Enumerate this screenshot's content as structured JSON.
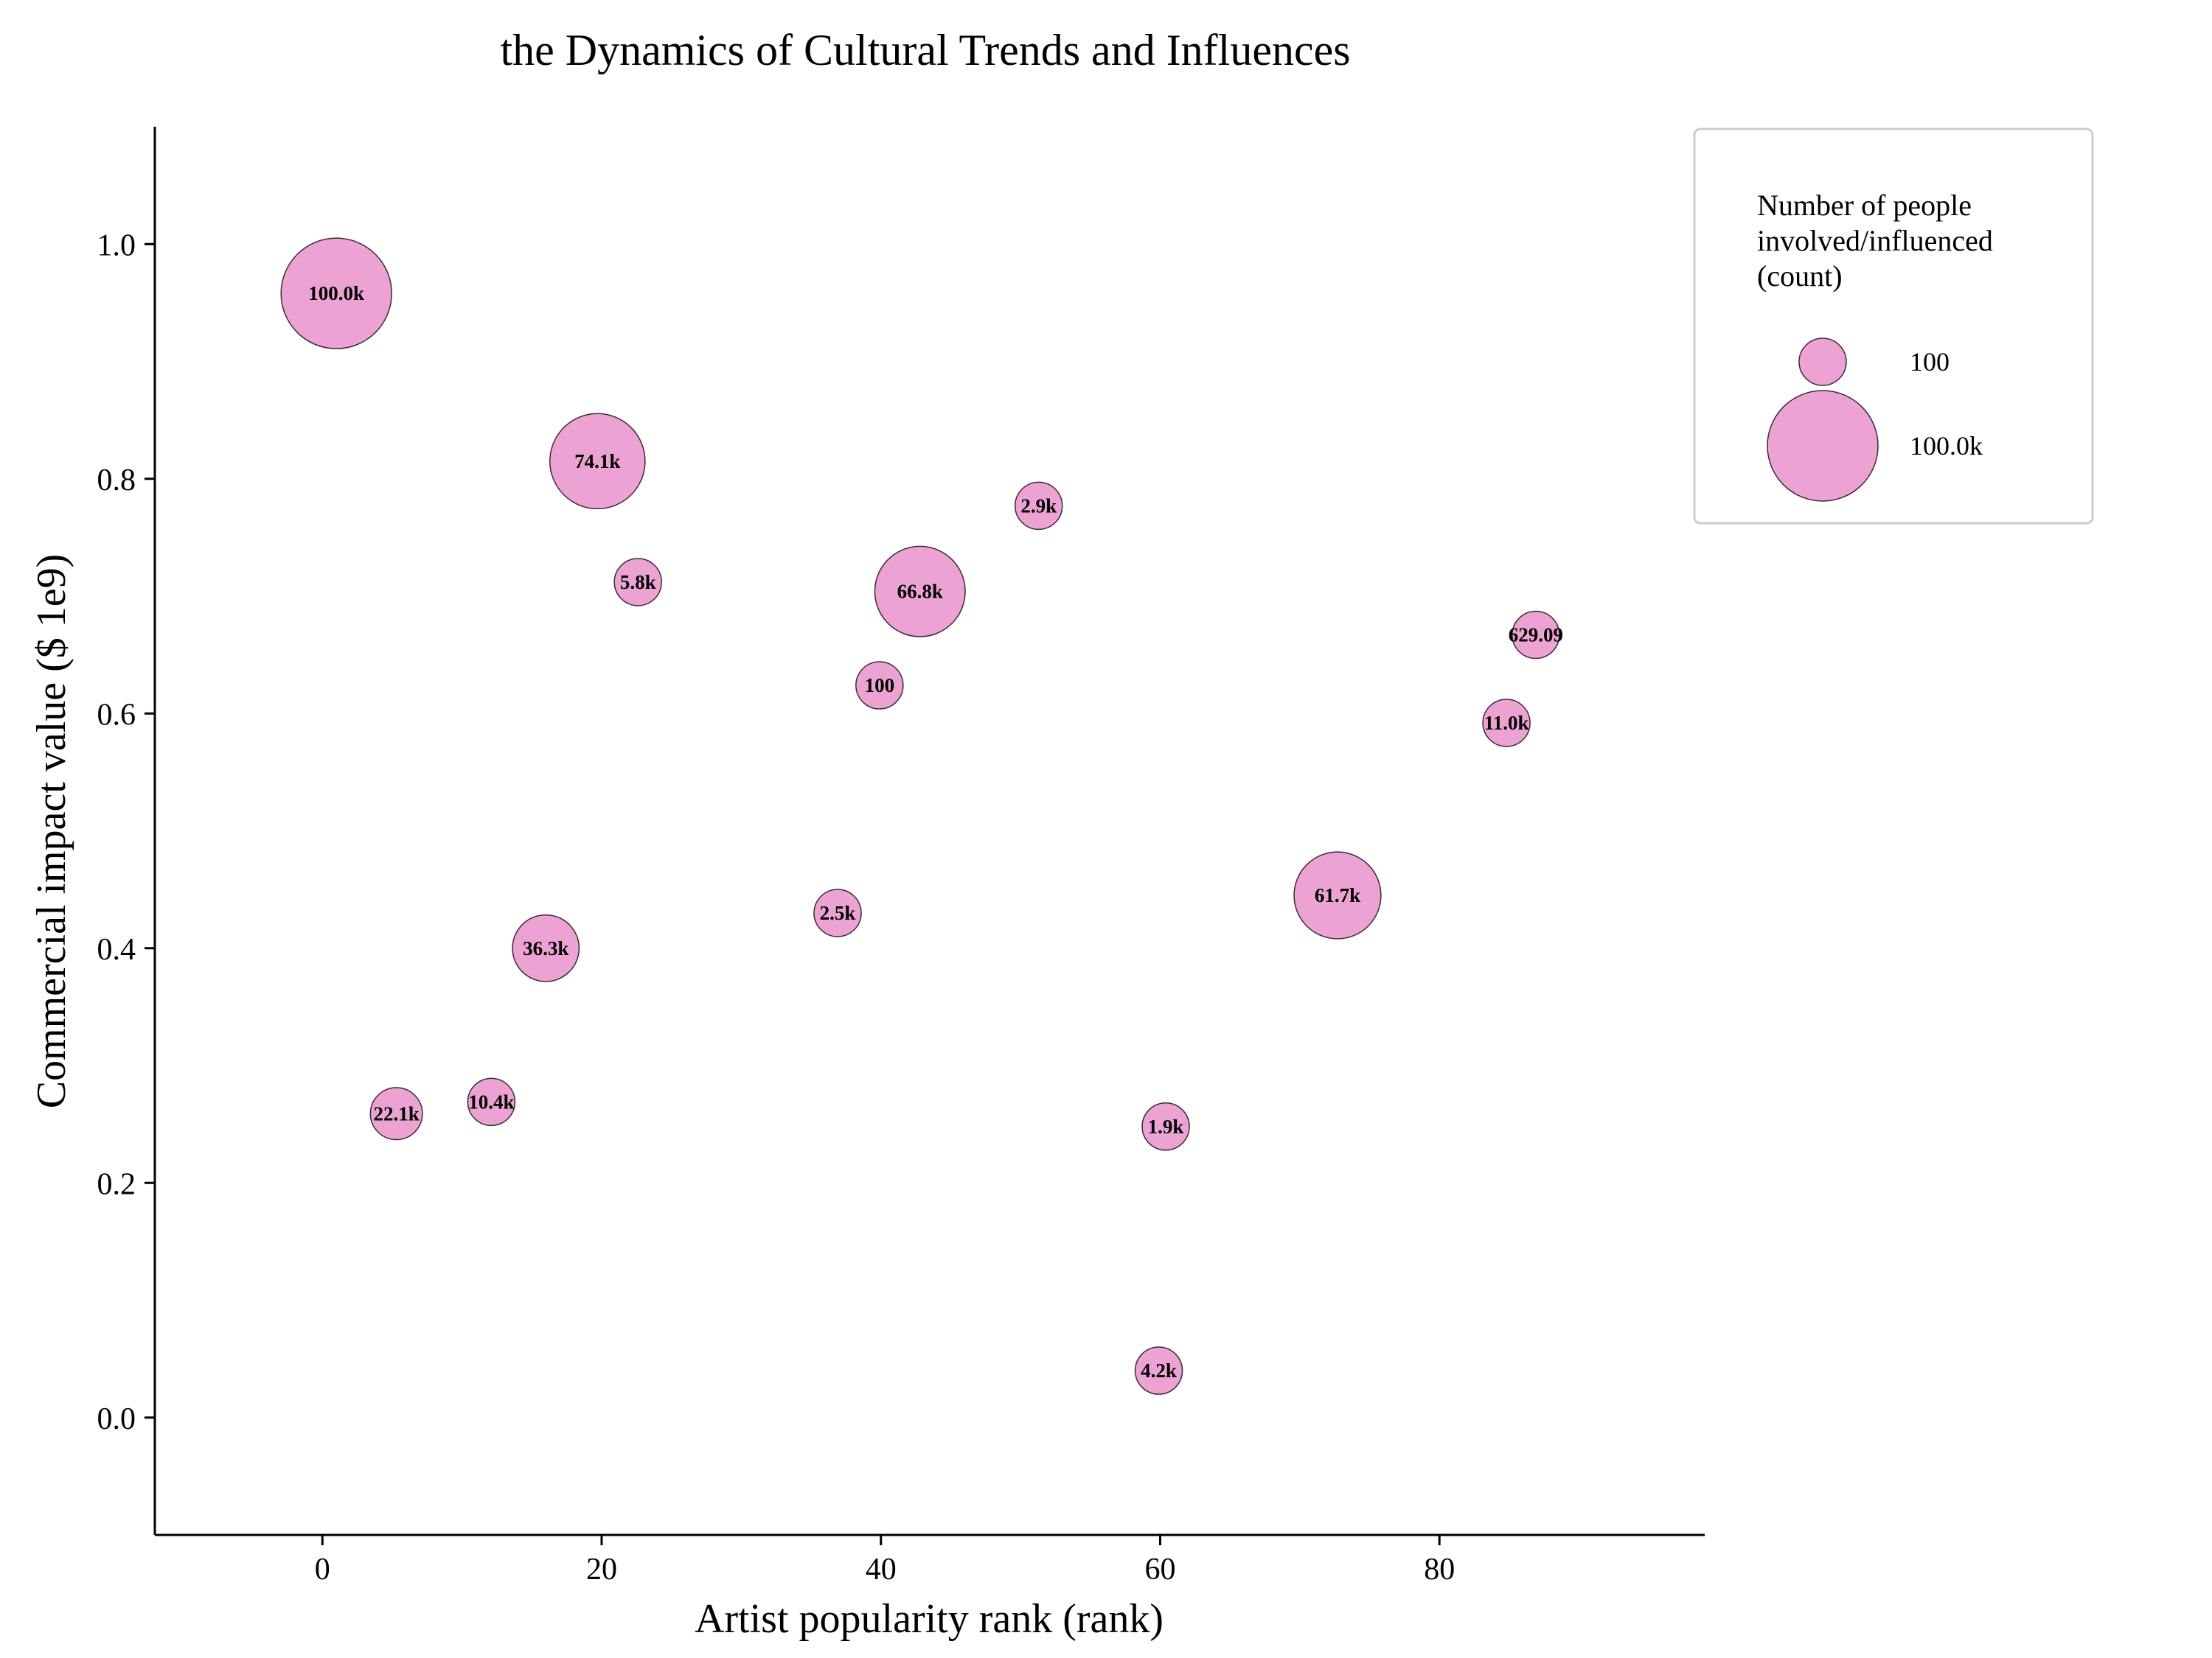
{
  "chart_data": {
    "type": "scatter",
    "variant": "bubble",
    "title": "the Dynamics of Cultural Trends and Influences",
    "xlabel": "Artist popularity rank (rank)",
    "ylabel": "Commercial impact value ($ 1e9)",
    "xlim": [
      -12,
      99
    ],
    "ylim": [
      -0.1,
      1.1
    ],
    "xticks": [
      0,
      20,
      40,
      60,
      80
    ],
    "xtick_labels": [
      "0",
      "20",
      "40",
      "60",
      "80"
    ],
    "yticks": [
      0.0,
      0.2,
      0.4,
      0.6,
      0.8,
      1.0
    ],
    "ytick_labels": [
      "0.0",
      "0.2",
      "0.4",
      "0.6",
      "0.8",
      "1.0"
    ],
    "grid": false,
    "bubble_color": "#eca3d4",
    "edge_color": "#3a2a35",
    "points": [
      {
        "x": 1.0,
        "y": 0.958,
        "size": 100000,
        "label": "100.0k"
      },
      {
        "x": 19.7,
        "y": 0.815,
        "size": 74100,
        "label": "74.1k"
      },
      {
        "x": 51.3,
        "y": 0.777,
        "size": 2900,
        "label": "2.9k"
      },
      {
        "x": 22.6,
        "y": 0.712,
        "size": 5800,
        "label": "5.8k"
      },
      {
        "x": 42.8,
        "y": 0.704,
        "size": 66800,
        "label": "66.8k"
      },
      {
        "x": 86.9,
        "y": 0.667,
        "size": 629.09,
        "label": "629.09"
      },
      {
        "x": 39.9,
        "y": 0.624,
        "size": 100,
        "label": "100"
      },
      {
        "x": 84.8,
        "y": 0.592,
        "size": 11000,
        "label": "11.0k"
      },
      {
        "x": 72.7,
        "y": 0.445,
        "size": 61700,
        "label": "61.7k"
      },
      {
        "x": 36.9,
        "y": 0.43,
        "size": 2500,
        "label": "2.5k"
      },
      {
        "x": 16.0,
        "y": 0.4,
        "size": 36300,
        "label": "36.3k"
      },
      {
        "x": 12.1,
        "y": 0.269,
        "size": 10400,
        "label": "10.4k"
      },
      {
        "x": 5.3,
        "y": 0.259,
        "size": 22100,
        "label": "22.1k"
      },
      {
        "x": 60.4,
        "y": 0.248,
        "size": 1900,
        "label": "1.9k"
      },
      {
        "x": 59.9,
        "y": 0.04,
        "size": 4200,
        "label": "4.2k"
      }
    ],
    "legend": {
      "position": "top-right outside",
      "title_lines": [
        "Number of people",
        "involved/influenced",
        "(count)"
      ],
      "entries": [
        {
          "label": "100",
          "size": 100
        },
        {
          "label": "100.0k",
          "size": 100000
        }
      ]
    }
  }
}
